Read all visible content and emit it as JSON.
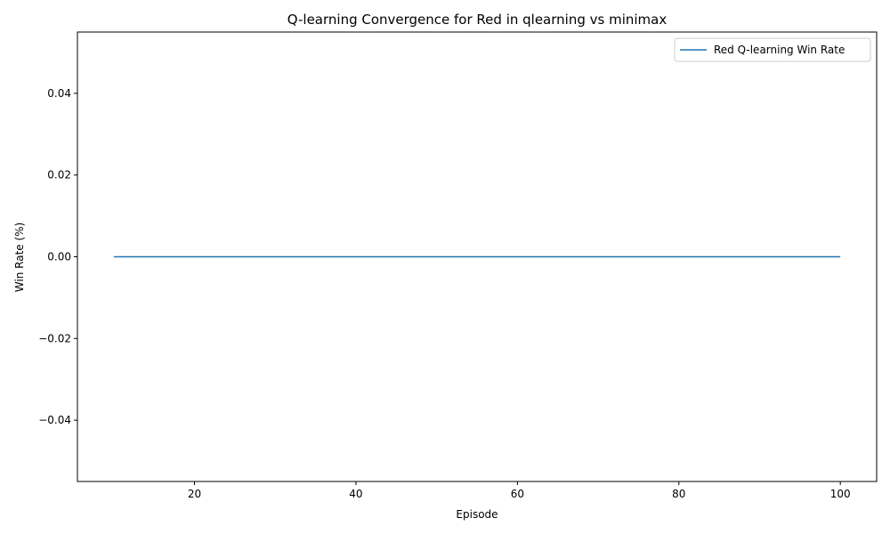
{
  "chart_data": {
    "type": "line",
    "title": "Q-learning Convergence for Red in qlearning vs minimax",
    "xlabel": "Episode",
    "ylabel": "Win Rate (%)",
    "xlim": [
      5.5,
      104.5
    ],
    "ylim": [
      -0.055,
      0.055
    ],
    "xticks": [
      20,
      40,
      60,
      80,
      100
    ],
    "xtick_labels": [
      "20",
      "40",
      "60",
      "80",
      "100"
    ],
    "yticks": [
      -0.04,
      -0.02,
      0.0,
      0.02,
      0.04
    ],
    "ytick_labels": [
      "−0.04",
      "−0.02",
      "0.00",
      "0.02",
      "0.04"
    ],
    "grid": false,
    "legend_position": "top-right",
    "series": [
      {
        "name": "Red Q-learning Win Rate",
        "color": "#1f77b4",
        "x": [
          10,
          20,
          30,
          40,
          50,
          60,
          70,
          80,
          90,
          100
        ],
        "y": [
          0,
          0,
          0,
          0,
          0,
          0,
          0,
          0,
          0,
          0
        ]
      }
    ]
  }
}
